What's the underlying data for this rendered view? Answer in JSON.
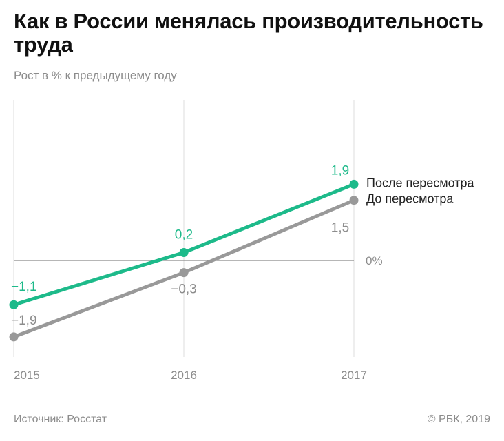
{
  "header": {
    "title": "Как в России менялась производительность труда",
    "subtitle": "Рост в % к предыдущему году"
  },
  "footer": {
    "source": "Источник: Росстат",
    "copyright": "© РБК, 2019"
  },
  "chart_data": {
    "type": "line",
    "x": [
      "2015",
      "2016",
      "2017"
    ],
    "zero_label": "0%",
    "ylim": [
      -2.4,
      4.0
    ],
    "grid": "vertical",
    "legend": "right, at line ends",
    "series": [
      {
        "name": "После пересмотра",
        "values": [
          -1.1,
          0.2,
          1.9
        ],
        "labels": [
          "−1,1",
          "0,2",
          "1,9"
        ],
        "color": "#1dba8a"
      },
      {
        "name": "До пересмотра",
        "values": [
          -1.9,
          -0.3,
          1.5
        ],
        "labels": [
          "−1,9",
          "−0,3",
          "1,5"
        ],
        "color": "#999999"
      }
    ]
  }
}
